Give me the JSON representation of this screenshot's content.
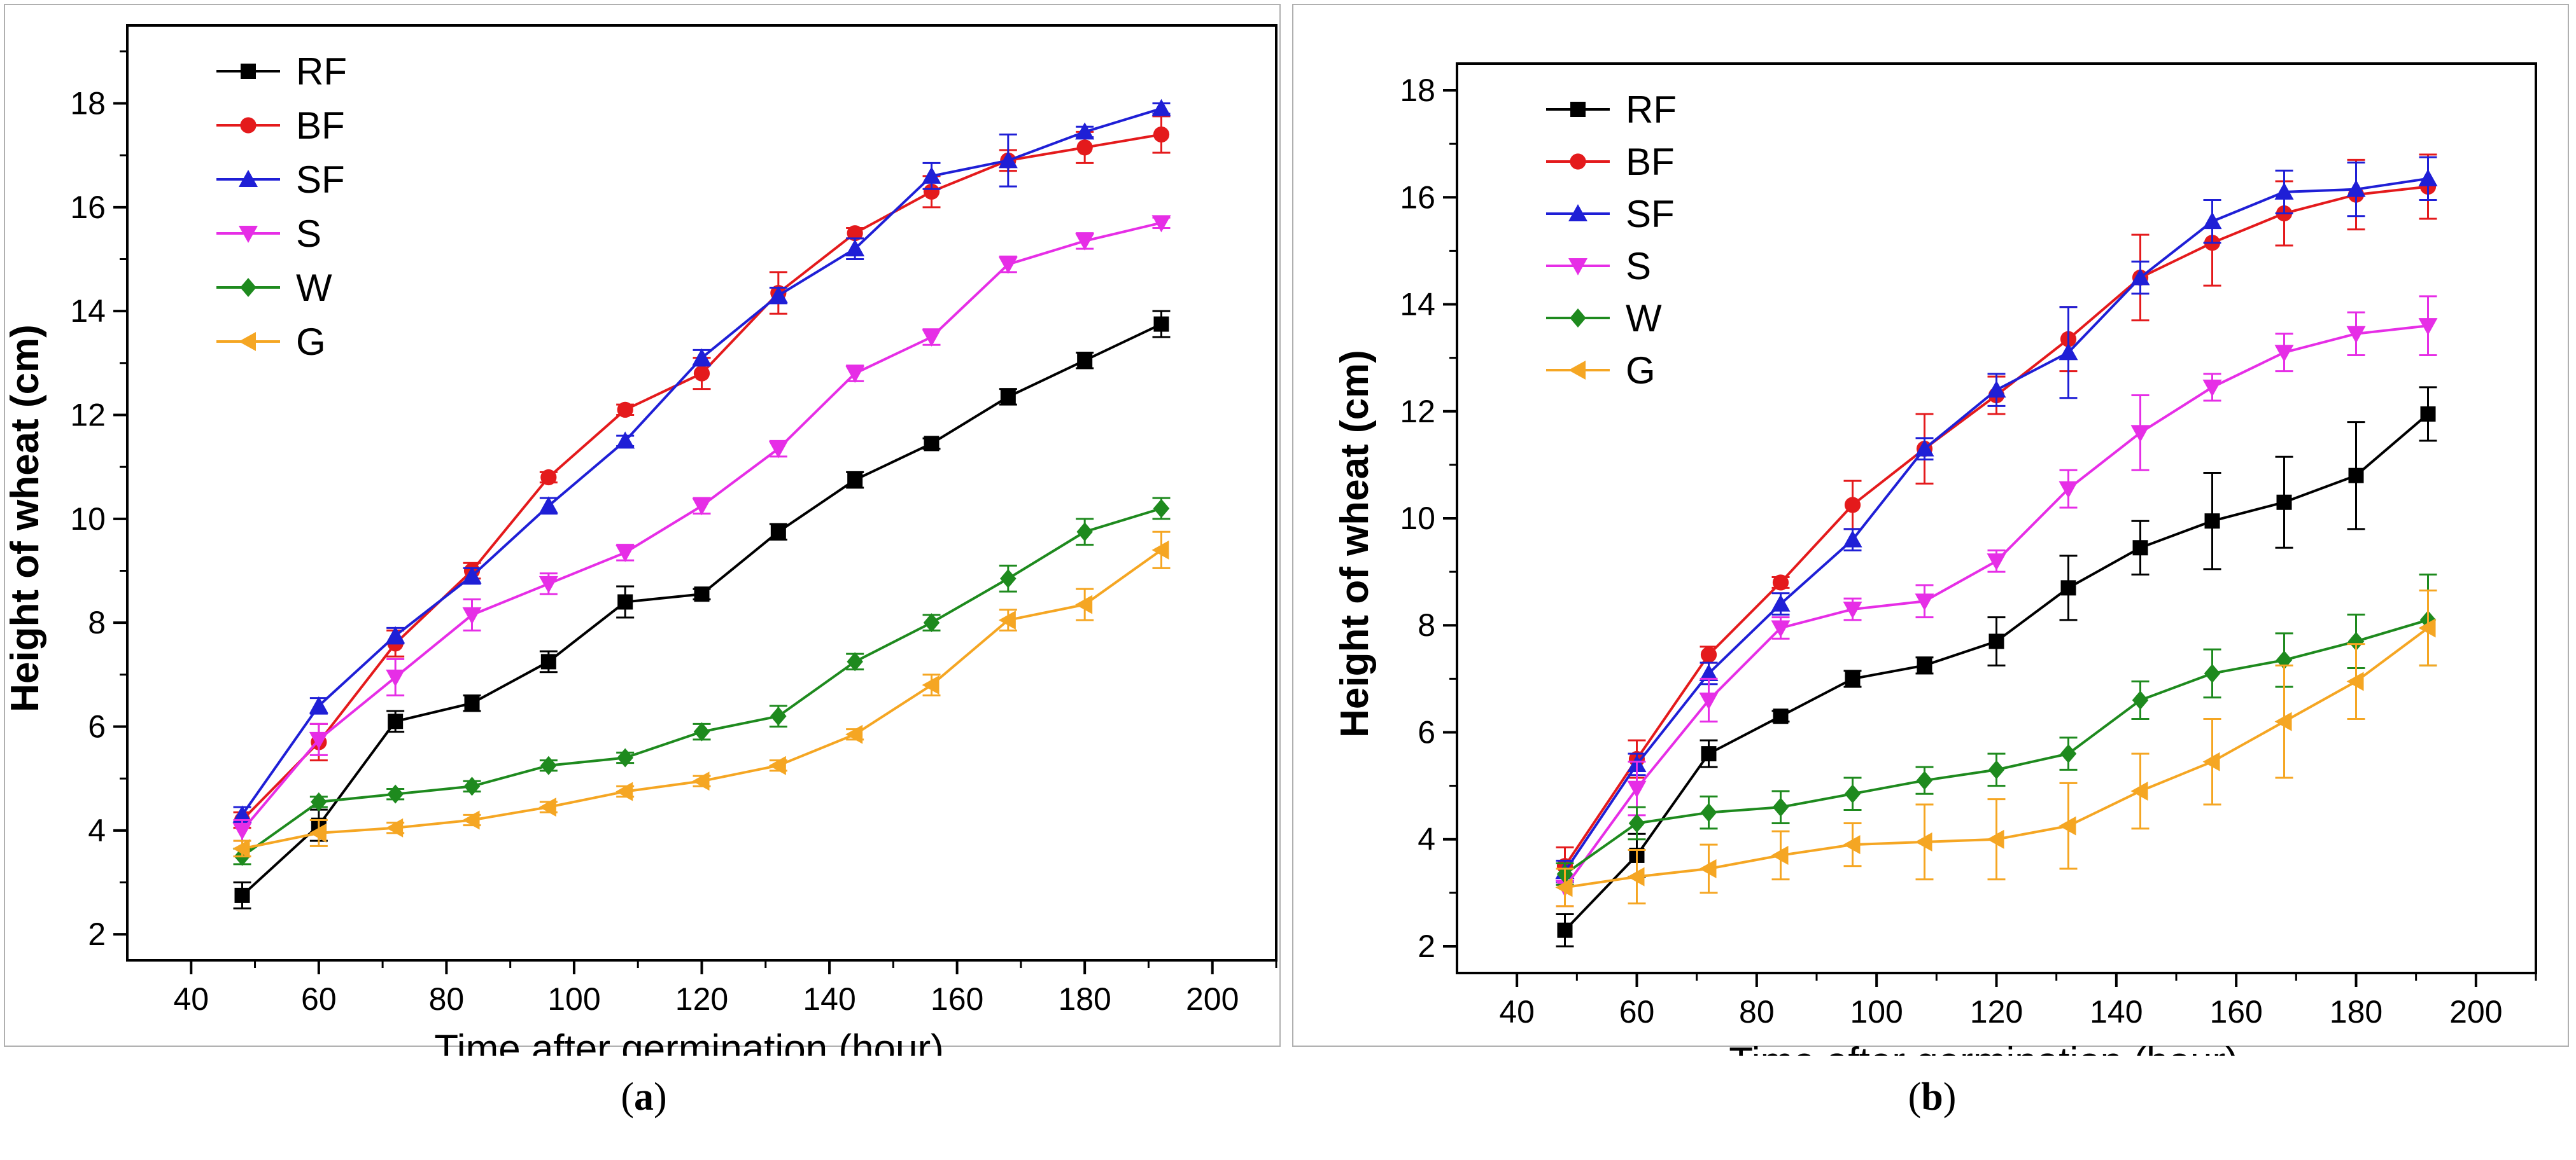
{
  "chart_data": [
    {
      "panel_id": "a",
      "panel_label": "a",
      "type": "line",
      "xlabel": "Time after germination (hour)",
      "ylabel": "Height of wheat (cm)",
      "xlim": [
        30,
        210
      ],
      "ylim": [
        1.5,
        19.5
      ],
      "xticks": [
        40,
        60,
        80,
        100,
        120,
        140,
        160,
        180,
        200
      ],
      "yticks": [
        2,
        4,
        6,
        8,
        10,
        12,
        14,
        16,
        18
      ],
      "legend_position": "top-left",
      "x": [
        48,
        60,
        72,
        84,
        96,
        108,
        120,
        132,
        144,
        156,
        168,
        180,
        192
      ],
      "series": [
        {
          "name": "RF",
          "color": "#000000",
          "marker": "square",
          "values": [
            2.75,
            4.1,
            6.1,
            6.45,
            7.25,
            8.4,
            8.55,
            9.75,
            10.75,
            11.45,
            12.35,
            13.05,
            13.75
          ],
          "errors": [
            0.25,
            0.3,
            0.2,
            0.15,
            0.2,
            0.3,
            0.1,
            0.15,
            0.15,
            0.1,
            0.15,
            0.15,
            0.25
          ]
        },
        {
          "name": "BF",
          "color": "#e41a1c",
          "marker": "circle",
          "values": [
            4.2,
            5.7,
            7.6,
            9.0,
            10.8,
            12.1,
            12.8,
            14.35,
            15.5,
            16.3,
            16.9,
            17.15,
            17.4
          ],
          "errors": [
            0.15,
            0.35,
            0.25,
            0.15,
            0.1,
            0.1,
            0.3,
            0.4,
            0.1,
            0.3,
            0.2,
            0.3,
            0.35
          ]
        },
        {
          "name": "SF",
          "color": "#1f1fd6",
          "marker": "triangle-up",
          "values": [
            4.3,
            6.4,
            7.75,
            8.9,
            10.25,
            11.5,
            13.1,
            14.3,
            15.2,
            16.6,
            16.9,
            17.45,
            17.9
          ],
          "errors": [
            0.15,
            0.15,
            0.15,
            0.15,
            0.15,
            0.1,
            0.15,
            0.15,
            0.2,
            0.25,
            0.5,
            0.1,
            0.1
          ]
        },
        {
          "name": "S",
          "color": "#e62ee6",
          "marker": "triangle-down",
          "values": [
            4.0,
            5.75,
            6.95,
            8.15,
            8.75,
            9.35,
            10.25,
            11.35,
            12.8,
            13.5,
            14.9,
            15.35,
            15.7
          ],
          "errors": [
            0.2,
            0.3,
            0.35,
            0.3,
            0.2,
            0.15,
            0.15,
            0.15,
            0.15,
            0.15,
            0.15,
            0.15,
            0.1
          ]
        },
        {
          "name": "W",
          "color": "#1e8a1e",
          "marker": "diamond",
          "values": [
            3.5,
            4.55,
            4.7,
            4.85,
            5.25,
            5.4,
            5.9,
            6.2,
            7.25,
            8.0,
            8.85,
            9.75,
            10.2
          ],
          "errors": [
            0.15,
            0.1,
            0.1,
            0.1,
            0.1,
            0.1,
            0.15,
            0.2,
            0.15,
            0.15,
            0.25,
            0.25,
            0.2
          ]
        },
        {
          "name": "G",
          "color": "#f5a623",
          "marker": "triangle-left",
          "values": [
            3.65,
            3.95,
            4.05,
            4.2,
            4.45,
            4.75,
            4.95,
            5.25,
            5.85,
            6.8,
            8.05,
            8.35,
            9.4
          ],
          "errors": [
            0.15,
            0.25,
            0.1,
            0.1,
            0.1,
            0.1,
            0.1,
            0.1,
            0.1,
            0.2,
            0.2,
            0.3,
            0.35
          ]
        }
      ]
    },
    {
      "panel_id": "b",
      "panel_label": "b",
      "type": "line",
      "xlabel": "Time after germination (hour)",
      "ylabel": "Height of wheat (cm)",
      "xlim": [
        30,
        210
      ],
      "ylim": [
        1.5,
        18.5
      ],
      "xticks": [
        40,
        60,
        80,
        100,
        120,
        140,
        160,
        180,
        200
      ],
      "yticks": [
        2,
        4,
        6,
        8,
        10,
        12,
        14,
        16,
        18
      ],
      "legend_position": "top-left",
      "x": [
        48,
        60,
        72,
        84,
        96,
        108,
        120,
        132,
        144,
        156,
        168,
        180,
        192
      ],
      "series": [
        {
          "name": "RF",
          "color": "#000000",
          "marker": "square",
          "values": [
            2.3,
            3.7,
            5.6,
            6.3,
            7.0,
            7.25,
            7.7,
            8.7,
            9.45,
            9.95,
            10.3,
            10.8,
            11.95
          ],
          "errors": [
            0.3,
            0.4,
            0.25,
            0.1,
            0.15,
            0.15,
            0.45,
            0.6,
            0.5,
            0.9,
            0.85,
            1.0,
            0.5
          ]
        },
        {
          "name": "BF",
          "color": "#e41a1c",
          "marker": "circle",
          "values": [
            3.5,
            5.5,
            7.45,
            8.8,
            10.25,
            11.3,
            12.3,
            13.35,
            14.5,
            15.15,
            15.7,
            16.05,
            16.2
          ],
          "errors": [
            0.35,
            0.35,
            0.15,
            0.1,
            0.45,
            0.65,
            0.35,
            0.6,
            0.8,
            0.8,
            0.6,
            0.65,
            0.6
          ]
        },
        {
          "name": "SF",
          "color": "#1f1fd6",
          "marker": "triangle-up",
          "values": [
            3.4,
            5.4,
            7.1,
            8.4,
            9.6,
            11.3,
            12.4,
            13.1,
            14.5,
            15.55,
            16.1,
            16.15,
            16.35
          ],
          "errors": [
            0.2,
            0.2,
            0.2,
            0.2,
            0.2,
            0.2,
            0.3,
            0.85,
            0.3,
            0.4,
            0.4,
            0.5,
            0.4
          ]
        },
        {
          "name": "S",
          "color": "#e62ee6",
          "marker": "triangle-down",
          "values": [
            3.1,
            4.95,
            6.6,
            7.95,
            8.3,
            8.45,
            9.2,
            10.55,
            11.6,
            12.45,
            13.1,
            13.45,
            13.6
          ],
          "errors": [
            0.35,
            0.5,
            0.4,
            0.2,
            0.2,
            0.3,
            0.2,
            0.35,
            0.7,
            0.25,
            0.35,
            0.4,
            0.55
          ]
        },
        {
          "name": "W",
          "color": "#1e8a1e",
          "marker": "diamond",
          "values": [
            3.35,
            4.3,
            4.5,
            4.6,
            4.85,
            5.1,
            5.3,
            5.6,
            6.6,
            7.1,
            7.35,
            7.7,
            8.1
          ],
          "errors": [
            0.2,
            0.3,
            0.3,
            0.3,
            0.3,
            0.25,
            0.3,
            0.3,
            0.35,
            0.45,
            0.5,
            0.5,
            0.85
          ]
        },
        {
          "name": "G",
          "color": "#f5a623",
          "marker": "triangle-left",
          "values": [
            3.1,
            3.3,
            3.45,
            3.7,
            3.9,
            3.95,
            4.0,
            4.25,
            4.9,
            5.45,
            6.2,
            6.95,
            7.95
          ],
          "errors": [
            0.35,
            0.5,
            0.45,
            0.45,
            0.4,
            0.7,
            0.75,
            0.8,
            0.7,
            0.8,
            1.05,
            0.7,
            0.7
          ]
        }
      ]
    }
  ]
}
